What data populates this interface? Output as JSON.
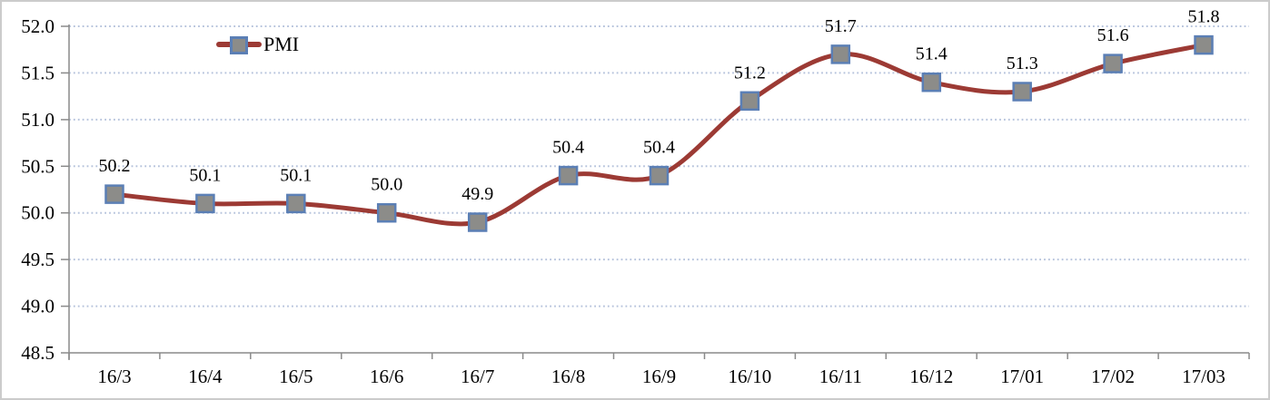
{
  "chart_data": {
    "type": "line",
    "title": "",
    "categories": [
      "16/3",
      "16/4",
      "16/5",
      "16/6",
      "16/7",
      "16/8",
      "16/9",
      "16/10",
      "16/11",
      "16/12",
      "17/01",
      "17/02",
      "17/03"
    ],
    "series": [
      {
        "name": "PMI",
        "values": [
          50.2,
          50.1,
          50.1,
          50.0,
          49.9,
          50.4,
          50.4,
          51.2,
          51.7,
          51.4,
          51.3,
          51.6,
          51.8
        ],
        "labels": [
          "50.2",
          "50.1",
          "50.1",
          "50.0",
          "49.9",
          "50.4",
          "50.4",
          "51.2",
          "51.7",
          "51.4",
          "51.3",
          "51.6",
          "51.8"
        ]
      }
    ],
    "ylim": [
      48.5,
      52.0
    ],
    "ytick_step": 0.5,
    "ytick_labels": [
      "52.0",
      "51.5",
      "51.0",
      "50.5",
      "50.0",
      "49.5",
      "49.0",
      "48.5"
    ],
    "xlabel": "",
    "ylabel": "",
    "grid": "horizontal-dotted",
    "smoothed": true,
    "marker_shape": "square",
    "legend": {
      "position": "top-inset-left",
      "label": "PMI"
    },
    "colors": {
      "line": "#9C3A34",
      "marker_fill": "#8C8C89",
      "marker_border": "#5B7FB5",
      "gridline": "#B6C3DC",
      "axis": "#8A8A8A",
      "text": "#000000",
      "background": "#FFFFFF",
      "frame_border": "#CBCBCB"
    }
  }
}
